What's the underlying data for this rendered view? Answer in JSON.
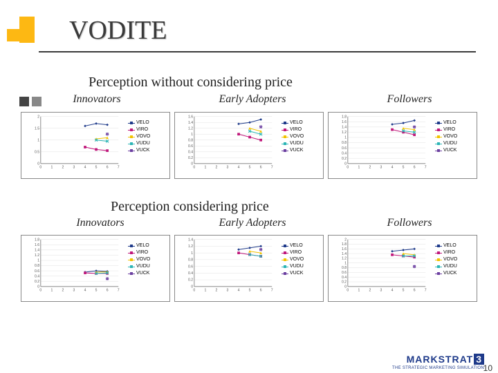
{
  "title": "VODITE",
  "section1_title": "Perception without considering price",
  "section2_title": "Perception considering price",
  "col_labels": [
    "Innovators",
    "Early Adopters",
    "Followers"
  ],
  "legend_series": [
    {
      "name": "VELO",
      "color": "#1e3a8a",
      "marker": "diamond"
    },
    {
      "name": "VIRO",
      "color": "#c0187b",
      "marker": "square"
    },
    {
      "name": "VOVO",
      "color": "#f2c300",
      "marker": "triangle"
    },
    {
      "name": "VUDU",
      "color": "#2ab5b5",
      "marker": "cross"
    },
    {
      "name": "VUCK",
      "color": "#6b3fa0",
      "marker": "star"
    }
  ],
  "x_axis": {
    "min": 0,
    "max": 7,
    "ticks": [
      0,
      1,
      2,
      3,
      4,
      5,
      6,
      7
    ]
  },
  "charts": {
    "row1": [
      {
        "ymin": 0,
        "ymax": 2.0,
        "ystep": 0.5,
        "series": [
          {
            "name": "VELO",
            "pts": [
              [
                4,
                1.6
              ],
              [
                5,
                1.7
              ],
              [
                6,
                1.65
              ]
            ]
          },
          {
            "name": "VIRO",
            "pts": [
              [
                4,
                0.7
              ],
              [
                5,
                0.6
              ],
              [
                6,
                0.55
              ]
            ]
          },
          {
            "name": "VOVO",
            "pts": [
              [
                5,
                1.05
              ],
              [
                6,
                1.1
              ]
            ]
          },
          {
            "name": "VUDU",
            "pts": [
              [
                5,
                1.0
              ],
              [
                6,
                0.95
              ]
            ]
          },
          {
            "name": "VUCK",
            "pts": [
              [
                6,
                1.25
              ]
            ]
          }
        ]
      },
      {
        "ymin": 0,
        "ymax": 1.6,
        "ystep": 0.2,
        "series": [
          {
            "name": "VELO",
            "pts": [
              [
                4,
                1.35
              ],
              [
                5,
                1.4
              ],
              [
                6,
                1.5
              ]
            ]
          },
          {
            "name": "VIRO",
            "pts": [
              [
                4,
                1.0
              ],
              [
                5,
                0.9
              ],
              [
                6,
                0.8
              ]
            ]
          },
          {
            "name": "VOVO",
            "pts": [
              [
                5,
                1.2
              ],
              [
                6,
                1.1
              ]
            ]
          },
          {
            "name": "VUDU",
            "pts": [
              [
                5,
                1.1
              ],
              [
                6,
                1.0
              ]
            ]
          },
          {
            "name": "VUCK",
            "pts": [
              [
                6,
                1.25
              ]
            ]
          }
        ]
      },
      {
        "ymin": 0,
        "ymax": 1.8,
        "ystep": 0.2,
        "series": [
          {
            "name": "VELO",
            "pts": [
              [
                4,
                1.5
              ],
              [
                5,
                1.55
              ],
              [
                6,
                1.65
              ]
            ]
          },
          {
            "name": "VIRO",
            "pts": [
              [
                4,
                1.3
              ],
              [
                5,
                1.2
              ],
              [
                6,
                1.1
              ]
            ]
          },
          {
            "name": "VOVO",
            "pts": [
              [
                5,
                1.35
              ],
              [
                6,
                1.3
              ]
            ]
          },
          {
            "name": "VUDU",
            "pts": [
              [
                5,
                1.25
              ],
              [
                6,
                1.2
              ]
            ]
          },
          {
            "name": "VUCK",
            "pts": [
              [
                6,
                1.4
              ]
            ]
          }
        ]
      }
    ],
    "row2": [
      {
        "ymin": 0,
        "ymax": 1.8,
        "ystep": 0.2,
        "series": [
          {
            "name": "VELO",
            "pts": [
              [
                4,
                0.55
              ],
              [
                5,
                0.6
              ],
              [
                6,
                0.58
              ]
            ]
          },
          {
            "name": "VIRO",
            "pts": [
              [
                4,
                0.52
              ],
              [
                5,
                0.5
              ],
              [
                6,
                0.5
              ]
            ]
          },
          {
            "name": "VOVO",
            "pts": [
              [
                5,
                0.55
              ],
              [
                6,
                0.56
              ]
            ]
          },
          {
            "name": "VUDU",
            "pts": [
              [
                5,
                0.5
              ],
              [
                6,
                0.52
              ]
            ]
          },
          {
            "name": "VUCK",
            "pts": [
              [
                6,
                0.3
              ]
            ]
          }
        ]
      },
      {
        "ymin": 0,
        "ymax": 1.4,
        "ystep": 0.2,
        "series": [
          {
            "name": "VELO",
            "pts": [
              [
                4,
                1.1
              ],
              [
                5,
                1.15
              ],
              [
                6,
                1.2
              ]
            ]
          },
          {
            "name": "VIRO",
            "pts": [
              [
                4,
                1.0
              ],
              [
                5,
                0.95
              ],
              [
                6,
                0.9
              ]
            ]
          },
          {
            "name": "VOVO",
            "pts": [
              [
                5,
                1.05
              ],
              [
                6,
                1.0
              ]
            ]
          },
          {
            "name": "VUDU",
            "pts": [
              [
                5,
                0.95
              ],
              [
                6,
                0.9
              ]
            ]
          },
          {
            "name": "VUCK",
            "pts": [
              [
                6,
                1.1
              ]
            ]
          }
        ]
      },
      {
        "ymin": 0,
        "ymax": 2.0,
        "ystep": 0.2,
        "series": [
          {
            "name": "VELO",
            "pts": [
              [
                4,
                1.5
              ],
              [
                5,
                1.55
              ],
              [
                6,
                1.6
              ]
            ]
          },
          {
            "name": "VIRO",
            "pts": [
              [
                4,
                1.35
              ],
              [
                5,
                1.3
              ],
              [
                6,
                1.25
              ]
            ]
          },
          {
            "name": "VOVO",
            "pts": [
              [
                5,
                1.4
              ],
              [
                6,
                1.35
              ]
            ]
          },
          {
            "name": "VUDU",
            "pts": [
              [
                5,
                1.3
              ],
              [
                6,
                1.3
              ]
            ]
          },
          {
            "name": "VUCK",
            "pts": [
              [
                6,
                0.85
              ]
            ]
          }
        ]
      }
    ]
  },
  "footer": {
    "brand": "MARKSTRAT",
    "edition": "3",
    "tagline": "THE STRATEGIC MARKETING SIMULATION"
  },
  "page_number": "10"
}
